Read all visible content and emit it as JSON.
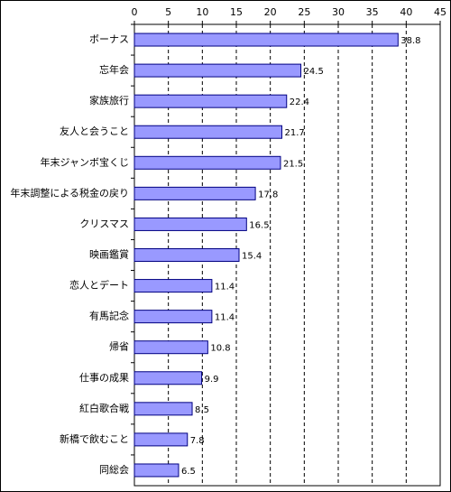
{
  "chart_data": {
    "type": "bar",
    "orientation": "horizontal",
    "categories": [
      "ボーナス",
      "忘年会",
      "家族旅行",
      "友人と会うこと",
      "年末ジャンボ宝くじ",
      "年末調整による税金の戻り",
      "クリスマス",
      "映画鑑賞",
      "恋人とデート",
      "有馬記念",
      "帰省",
      "仕事の成果",
      "紅白歌合戦",
      "新橋で飲むこと",
      "同総会"
    ],
    "values": [
      38.8,
      24.5,
      22.4,
      21.7,
      21.5,
      17.8,
      16.5,
      15.4,
      11.4,
      11.4,
      10.8,
      9.9,
      8.5,
      7.8,
      6.5
    ],
    "color": "#9999ff",
    "xlim": [
      0,
      45
    ],
    "xticks": [
      0,
      5,
      10,
      15,
      20,
      25,
      30,
      35,
      40,
      45
    ],
    "grid": true
  }
}
